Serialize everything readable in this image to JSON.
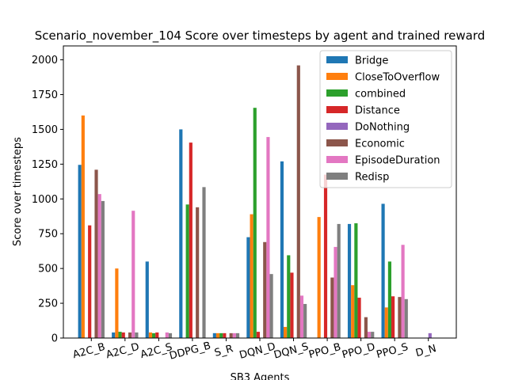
{
  "chart_data": {
    "type": "bar",
    "title": "Scenario_november_104 Score over timesteps by agent and trained reward",
    "xlabel": "SB3 Agents",
    "ylabel": "Score over timesteps",
    "ylim": [
      0,
      2100
    ],
    "yticks": [
      0,
      250,
      500,
      750,
      1000,
      1250,
      1500,
      1750,
      2000
    ],
    "grid": false,
    "legend_position": "top-right",
    "categories": [
      "A2C_B",
      "A2C_D",
      "A2C_S",
      "DDPG_B",
      "S_R",
      "DQN_D",
      "DQN_S",
      "PPO_B",
      "PPO_D",
      "PPO_S",
      "D_N"
    ],
    "series": [
      {
        "name": "Bridge",
        "color": "#1f77b4",
        "values": [
          1245,
          40,
          550,
          1500,
          35,
          725,
          1270,
          0,
          820,
          965,
          0
        ]
      },
      {
        "name": "CloseToOverflow",
        "color": "#ff7f0e",
        "values": [
          1600,
          500,
          40,
          0,
          35,
          890,
          80,
          870,
          380,
          220,
          0
        ]
      },
      {
        "name": "combined",
        "color": "#2ca02c",
        "values": [
          0,
          45,
          35,
          960,
          35,
          1655,
          595,
          0,
          825,
          550,
          0
        ]
      },
      {
        "name": "Distance",
        "color": "#d62728",
        "values": [
          810,
          40,
          40,
          1405,
          35,
          45,
          470,
          1175,
          290,
          300,
          0
        ]
      },
      {
        "name": "DoNothing",
        "color": "#9467bd",
        "values": [
          0,
          0,
          0,
          0,
          0,
          0,
          0,
          0,
          0,
          0,
          35
        ]
      },
      {
        "name": "Economic",
        "color": "#8c564b",
        "values": [
          1210,
          40,
          0,
          940,
          35,
          690,
          1960,
          435,
          150,
          295,
          0
        ]
      },
      {
        "name": "EpisodeDuration",
        "color": "#e377c2",
        "values": [
          1035,
          915,
          40,
          0,
          35,
          1445,
          305,
          655,
          45,
          670,
          0
        ]
      },
      {
        "name": "Redisp",
        "color": "#7f7f7f",
        "values": [
          985,
          40,
          35,
          1085,
          35,
          460,
          245,
          820,
          45,
          280,
          0
        ]
      }
    ]
  }
}
